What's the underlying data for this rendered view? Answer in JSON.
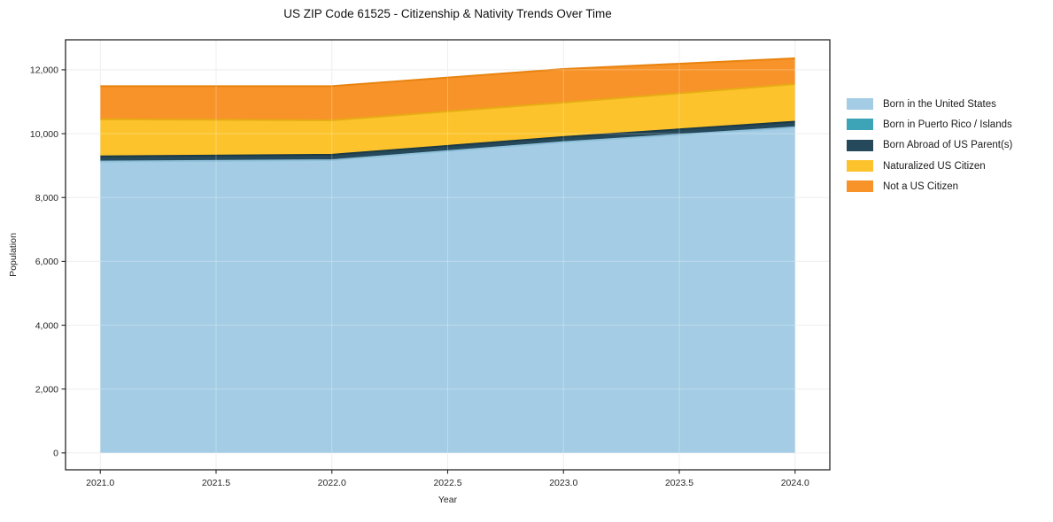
{
  "chart_data": {
    "type": "area",
    "stacked": true,
    "title": "US ZIP Code 61525 - Citizenship & Nativity Trends Over Time",
    "xlabel": "Year",
    "ylabel": "Population",
    "x": [
      2021,
      2022,
      2023,
      2024
    ],
    "xlim": [
      2020.85,
      2024.15
    ],
    "ylim": [
      -530,
      12940
    ],
    "x_tick_values": [
      2021,
      2021.5,
      2022,
      2022.5,
      2023,
      2023.5,
      2024
    ],
    "x_tick_labels": [
      "2021.0",
      "2021.5",
      "2022.0",
      "2022.5",
      "2023.0",
      "2023.5",
      "2024.0"
    ],
    "y_tick_values": [
      0,
      2000,
      4000,
      6000,
      8000,
      10000,
      12000
    ],
    "y_tick_labels": [
      "0",
      "2,000",
      "4,000",
      "6,000",
      "8,000",
      "10,000",
      "12,000"
    ],
    "grid": true,
    "legend_position": "right-outside",
    "series": [
      {
        "name": "Born in the United States",
        "color": "#a4cde5",
        "edge": "#8fc0da",
        "values": [
          9125,
          9170,
          9735,
          10200
        ]
      },
      {
        "name": "Born in Puerto Rico / Islands",
        "color": "#3da4b8",
        "edge": "#35919f",
        "values": [
          0,
          0,
          0,
          0
        ]
      },
      {
        "name": "Born Abroad of US Parent(s)",
        "color": "#25495a",
        "edge": "#1b3a47",
        "values": [
          165,
          170,
          160,
          175
        ]
      },
      {
        "name": "Naturalized US Citizen",
        "color": "#fcc32d",
        "edge": "#e7ab14",
        "values": [
          1160,
          1080,
          1080,
          1180
        ]
      },
      {
        "name": "Not a US Citizen",
        "color": "#f79329",
        "edge": "#e8830f",
        "values": [
          1040,
          1070,
          1050,
          805
        ]
      }
    ],
    "totals": [
      11490,
      11490,
      12025,
      12360
    ]
  },
  "style": {
    "grid_color": "#e9e9e9",
    "spine_color": "#262626",
    "tick_text_color": "#262626",
    "title_color": "#111111"
  }
}
